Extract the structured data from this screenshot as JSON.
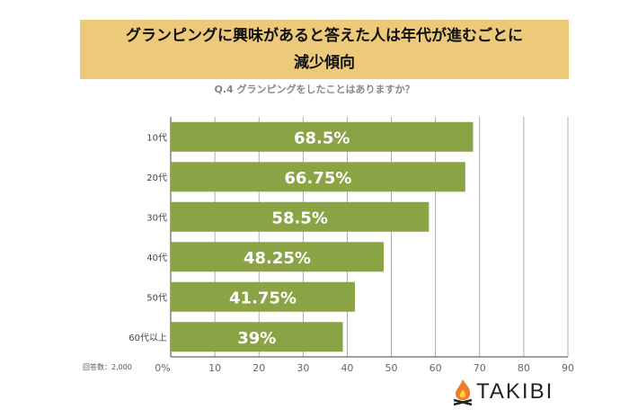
{
  "header": {
    "title_line1": "グランピングに興味があると答えた人は年代が進むごとに",
    "title_line2": "減少傾向",
    "subtitle": "Q.4 グランピングをしたことはありますか？"
  },
  "footer": {
    "note": "回答数：2,000",
    "brand": "TAKIBI"
  },
  "colors": {
    "bar": "#8AA445",
    "title_bg": "#EDCA7A"
  },
  "chart_data": {
    "type": "bar",
    "orientation": "horizontal",
    "categories": [
      "10代",
      "20代",
      "30代",
      "40代",
      "50代",
      "60代以上"
    ],
    "values": [
      68.5,
      66.75,
      58.5,
      48.25,
      41.75,
      39
    ],
    "data_labels": [
      "68.5%",
      "66.75%",
      "58.5%",
      "48.25%",
      "41.75%",
      "39%"
    ],
    "xlim": [
      0,
      90
    ],
    "x_ticks": [
      "0%",
      "10",
      "20",
      "30",
      "40",
      "50",
      "60",
      "70",
      "80",
      "90"
    ],
    "grid": true
  }
}
